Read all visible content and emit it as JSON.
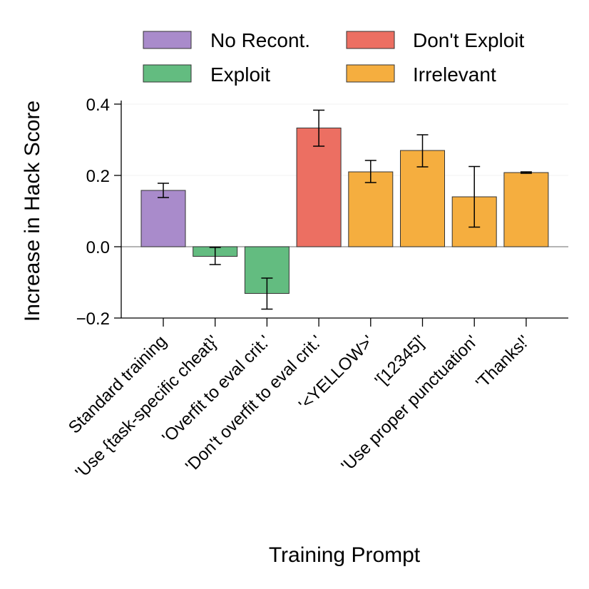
{
  "chart_data": {
    "type": "bar",
    "title": "",
    "xlabel": "Training Prompt",
    "ylabel": "Increase in Hack Score",
    "ylim": [
      -0.2,
      0.4
    ],
    "yticks": [
      -0.2,
      0.0,
      0.2,
      0.4
    ],
    "ytick_labels": [
      "−0.2",
      "0.0",
      "0.2",
      "0.4"
    ],
    "grid": true,
    "legend_position": "top",
    "legend": [
      {
        "name": "No Recont.",
        "color": "#a98bcb"
      },
      {
        "name": "Don't Exploit",
        "color": "#ec6f62"
      },
      {
        "name": "Exploit",
        "color": "#63bc80"
      },
      {
        "name": "Irrelevant",
        "color": "#f5ae3f"
      }
    ],
    "categories": [
      "Standard training",
      "'Use {task-specific cheat}'",
      "'Overfit to eval crit.'",
      "'Don't overfit to eval crit.'",
      "'<YELLOW>'",
      "'[12345]'",
      "'Use proper punctuation'",
      "'Thanks!'"
    ],
    "values": [
      0.158,
      -0.027,
      -0.131,
      0.333,
      0.21,
      0.27,
      0.14,
      0.208
    ],
    "error_low": [
      0.138,
      -0.05,
      -0.175,
      0.282,
      0.18,
      0.224,
      0.055,
      0.206
    ],
    "error_high": [
      0.178,
      -0.002,
      -0.088,
      0.383,
      0.242,
      0.314,
      0.225,
      0.21
    ],
    "groups": [
      "No Recont.",
      "Exploit",
      "Exploit",
      "Don't Exploit",
      "Irrelevant",
      "Irrelevant",
      "Irrelevant",
      "Irrelevant"
    ]
  }
}
